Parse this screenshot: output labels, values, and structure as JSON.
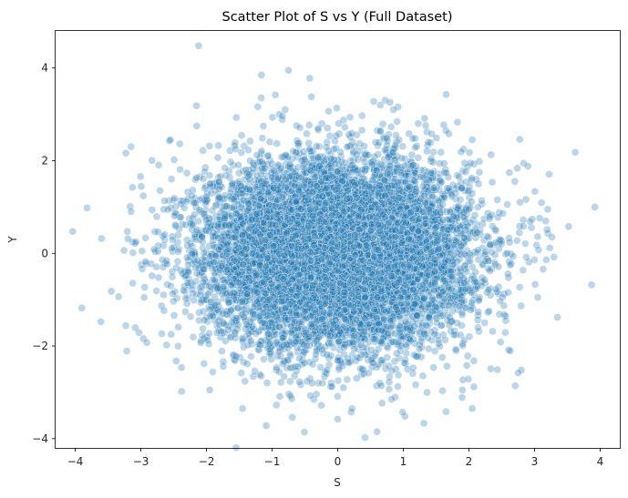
{
  "chart_data": {
    "type": "scatter",
    "title": "Scatter Plot of S vs Y (Full Dataset)",
    "xlabel": "S",
    "ylabel": "Y",
    "xlim": [
      -4.3,
      4.3
    ],
    "ylim": [
      -4.2,
      4.8
    ],
    "xticks": [
      -4,
      -3,
      -2,
      -1,
      0,
      1,
      2,
      3,
      4
    ],
    "yticks": [
      -4,
      -2,
      0,
      2,
      4
    ],
    "grid": false,
    "marker_color": "#1f77b4",
    "marker_alpha": 0.3,
    "point_count": 10000,
    "distribution": {
      "x_mean": 0,
      "x_std": 1,
      "y_mean": 0,
      "y_std": 1,
      "correlation": 0
    },
    "points": [
      [
        -2.12,
        4.48
      ],
      [
        -0.75,
        3.95
      ],
      [
        -0.95,
        3.42
      ],
      [
        -0.4,
        3.38
      ],
      [
        0.55,
        3.28
      ],
      [
        -0.8,
        3.1
      ],
      [
        0.65,
        3.2
      ],
      [
        0.85,
        3.1
      ],
      [
        -3.15,
        2.3
      ],
      [
        -2.55,
        2.45
      ],
      [
        -2.15,
        2.75
      ],
      [
        1.65,
        2.65
      ],
      [
        2.05,
        2.45
      ],
      [
        2.9,
        1.88
      ],
      [
        2.7,
        1.55
      ],
      [
        -3.9,
        -1.18
      ],
      [
        -3.82,
        0.98
      ],
      [
        -3.6,
        0.32
      ],
      [
        -3.45,
        -0.82
      ],
      [
        3.92,
        1.0
      ],
      [
        3.52,
        0.58
      ],
      [
        3.87,
        -0.68
      ],
      [
        3.35,
        -1.38
      ],
      [
        -2.38,
        -2.98
      ],
      [
        -1.95,
        -2.95
      ],
      [
        -0.72,
        -3.08
      ],
      [
        -0.25,
        -3.28
      ],
      [
        0.0,
        -3.58
      ],
      [
        0.22,
        -3.35
      ],
      [
        0.6,
        -3.85
      ],
      [
        2.8,
        -2.52
      ],
      [
        2.75,
        -2.58
      ],
      [
        2.05,
        -3.35
      ],
      [
        1.9,
        -2.95
      ],
      [
        -1.45,
        -3.35
      ],
      [
        0.82,
        -3.15
      ],
      [
        3.2,
        0.95
      ],
      [
        -3.15,
        0.9
      ],
      [
        3.05,
        -0.95
      ],
      [
        -2.95,
        -0.95
      ]
    ]
  }
}
